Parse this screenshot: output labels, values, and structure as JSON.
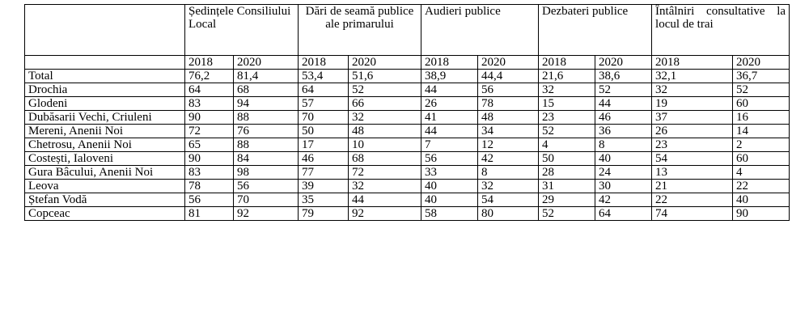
{
  "table": {
    "groups": [
      "Ședințele Consiliului Local",
      "Dări de seamă publice ale primarului",
      "Audieri publice",
      "Dezbateri publice",
      "Întâlniri consultative la locul de trai"
    ],
    "years": [
      "2018",
      "2020",
      "2018",
      "2020",
      "2018",
      "2020",
      "2018",
      "2020",
      "2018",
      "2020"
    ],
    "rows": [
      [
        "Total",
        "76,2",
        "81,4",
        "53,4",
        "51,6",
        "38,9",
        "44,4",
        "21,6",
        "38,6",
        "32,1",
        "36,7"
      ],
      [
        "Drochia",
        "64",
        "68",
        "64",
        "52",
        "44",
        "56",
        "32",
        "52",
        "32",
        "52"
      ],
      [
        "Glodeni",
        "83",
        "94",
        "57",
        "66",
        "26",
        "78",
        "15",
        "44",
        "19",
        "60"
      ],
      [
        "Dubăsarii Vechi, Criuleni",
        "90",
        "88",
        "70",
        "32",
        "41",
        "48",
        "23",
        "46",
        "37",
        "16"
      ],
      [
        "Mereni, Anenii Noi",
        "72",
        "76",
        "50",
        "48",
        "44",
        "34",
        "52",
        "36",
        "26",
        "14"
      ],
      [
        "Chetrosu, Anenii Noi",
        "65",
        "88",
        "17",
        "10",
        "7",
        "12",
        "4",
        "8",
        "23",
        "2"
      ],
      [
        "Costești, Ialoveni",
        "90",
        "84",
        "46",
        "68",
        "56",
        "42",
        "50",
        "40",
        "54",
        "60"
      ],
      [
        "Gura Bâcului, Anenii Noi",
        "83",
        "98",
        "77",
        "72",
        "33",
        "8",
        "28",
        "24",
        "13",
        "4"
      ],
      [
        "Leova",
        "78",
        "56",
        "39",
        "32",
        "40",
        "32",
        "31",
        "30",
        "21",
        "22"
      ],
      [
        "Ștefan Vodă",
        "56",
        "70",
        "35",
        "44",
        "40",
        "54",
        "29",
        "42",
        "22",
        "40"
      ],
      [
        "Copceac",
        "81",
        "92",
        "79",
        "92",
        "58",
        "80",
        "52",
        "64",
        "74",
        "90"
      ]
    ]
  }
}
